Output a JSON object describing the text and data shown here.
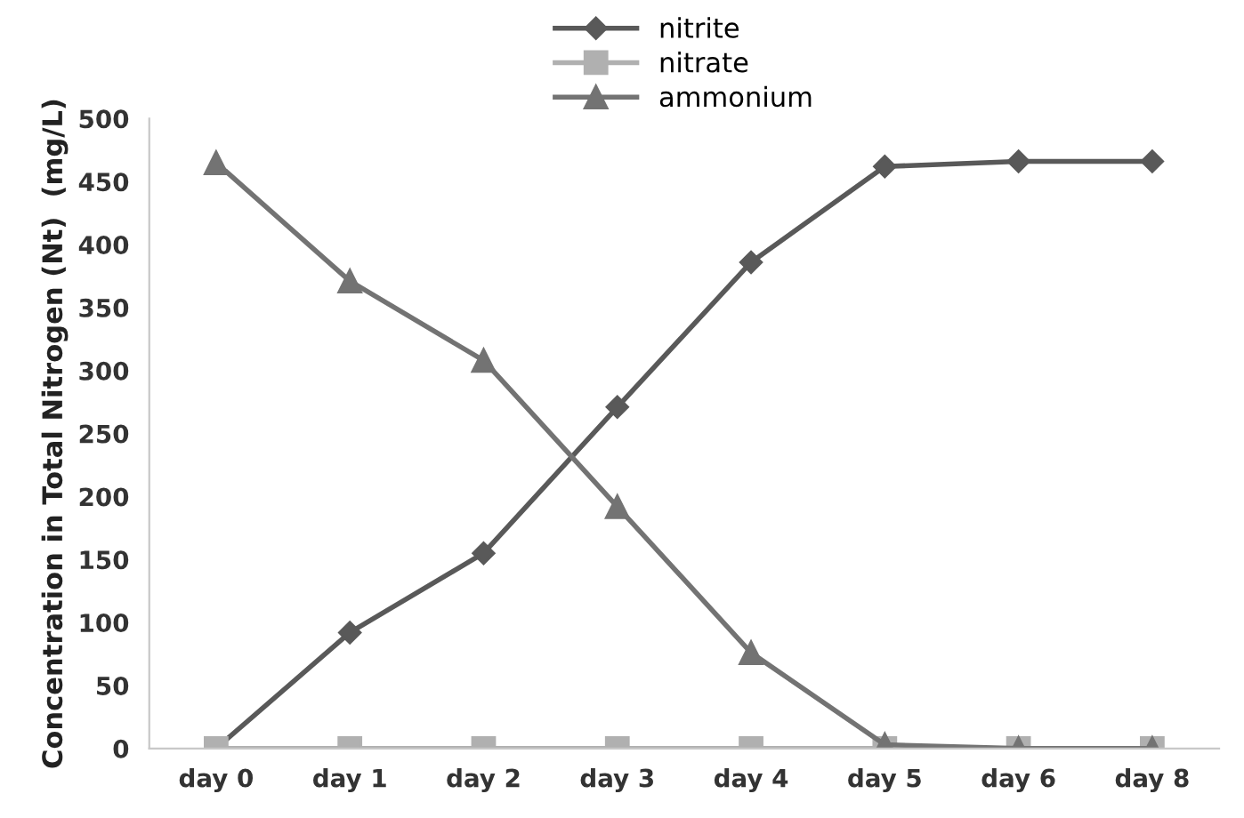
{
  "chart_data": {
    "type": "line",
    "ylabel": "Concentration in Total Nitrogen (Nt)  (mg/L)",
    "categories": [
      "day 0",
      "day 1",
      "day 2",
      "day 3",
      "day 4",
      "day 5",
      "day 6",
      "day 8"
    ],
    "series": [
      {
        "name": "nitrite",
        "color": "#595959",
        "marker": "diamond",
        "values": [
          0,
          92,
          155,
          271,
          386,
          462,
          466,
          466
        ]
      },
      {
        "name": "nitrate",
        "color": "#b0b0b0",
        "marker": "square",
        "values": [
          0,
          0,
          0,
          0,
          0,
          0,
          0,
          0
        ]
      },
      {
        "name": "ammonium",
        "color": "#737373",
        "marker": "triangle",
        "values": [
          465,
          371,
          308,
          192,
          76,
          3,
          0,
          0
        ]
      }
    ],
    "ylim": [
      0,
      500
    ],
    "yticks": [
      0,
      50,
      100,
      150,
      200,
      250,
      300,
      350,
      400,
      450,
      500
    ],
    "grid": false,
    "legend": "top",
    "line_style": "solid"
  }
}
